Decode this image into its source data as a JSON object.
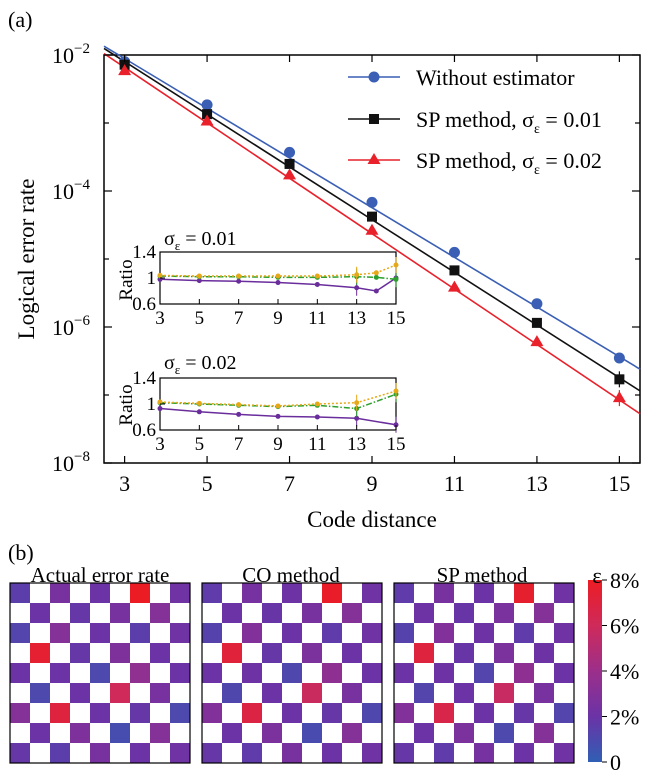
{
  "panel_a_label": "(a)",
  "panel_b_label": "(b)",
  "colors": {
    "without": "#3a5fb4",
    "sp001": "#111111",
    "sp002": "#e8212b",
    "ratio_purple": "#6a2d9c",
    "ratio_green": "#2ca02c",
    "ratio_orange": "#e6a817"
  },
  "chart_data": [
    {
      "type": "line",
      "xlabel": "Code distance",
      "ylabel": "Logical error rate",
      "y_scale": "log",
      "xlim": [
        2.5,
        15.5
      ],
      "ylim": [
        1e-08,
        0.01
      ],
      "x_ticks": [
        "3",
        "5",
        "7",
        "9",
        "11",
        "13",
        "15"
      ],
      "y_tick_bases": [
        "10",
        "10",
        "10",
        "10"
      ],
      "y_tick_exps": [
        "−2",
        "−4",
        "−6",
        "−8"
      ],
      "legend": "top-right",
      "series": [
        {
          "name": "Without estimator",
          "marker": "circle",
          "x": [
            3,
            5,
            7,
            9,
            11,
            13,
            15
          ],
          "y": [
            0.008,
            0.00185,
            0.00037,
            6.8e-05,
            1.25e-05,
            2.2e-06,
            3.5e-07
          ],
          "fit": [
            [
              2.5,
              0.0135
            ],
            [
              15.5,
              2.4e-07
            ]
          ]
        },
        {
          "name": "SP method, σ",
          "name_sub": "ε",
          "name_tail": " = 0.01",
          "marker": "square",
          "x": [
            3,
            5,
            7,
            9,
            11,
            13,
            15
          ],
          "y": [
            0.0072,
            0.00135,
            0.00025,
            4.2e-05,
            6.8e-06,
            1.15e-06,
            1.7e-07
          ],
          "fit": [
            [
              2.5,
              0.0125
            ],
            [
              15.5,
              1.15e-07
            ]
          ]
        },
        {
          "name": "SP method, σ",
          "name_sub": "ε",
          "name_tail": " = 0.02",
          "marker": "triangle",
          "x": [
            3,
            5,
            7,
            9,
            11,
            13,
            15
          ],
          "y": [
            0.0058,
            0.00105,
            0.00017,
            2.6e-05,
            3.8e-06,
            6e-07,
            9e-08
          ],
          "fit": [
            [
              2.5,
              0.0105
            ],
            [
              15.5,
              5.3e-08
            ]
          ]
        }
      ]
    },
    {
      "type": "line",
      "title_prefix": "σ",
      "title_sub": "ε",
      "title_tail": " = 0.01",
      "ylabel": "Ratio",
      "xlim": [
        3,
        15
      ],
      "ylim": [
        0.6,
        1.4
      ],
      "x_ticks": [
        "3",
        "5",
        "7",
        "9",
        "11",
        "13",
        "15"
      ],
      "y_ticks": [
        "1.4",
        "1",
        "0.6"
      ],
      "series": [
        {
          "color": "ratio_purple",
          "dash": "solid",
          "x": [
            3,
            5,
            7,
            9,
            11,
            13,
            14,
            15
          ],
          "y": [
            0.98,
            0.96,
            0.95,
            0.93,
            0.9,
            0.85,
            0.8,
            1.0
          ]
        },
        {
          "color": "ratio_green",
          "dash": "dashdot",
          "x": [
            3,
            5,
            7,
            9,
            11,
            13,
            14,
            15
          ],
          "y": [
            1.03,
            1.02,
            1.02,
            1.01,
            1.01,
            1.02,
            1.01,
            0.98
          ]
        },
        {
          "color": "ratio_orange",
          "dash": "dotted",
          "x": [
            3,
            5,
            7,
            9,
            11,
            13,
            14,
            15
          ],
          "y": [
            1.04,
            1.03,
            1.03,
            1.03,
            1.03,
            1.05,
            1.08,
            1.2
          ]
        }
      ]
    },
    {
      "type": "line",
      "title_prefix": "σ",
      "title_sub": "ε",
      "title_tail": " = 0.02",
      "ylabel": "Ratio",
      "xlim": [
        3,
        15
      ],
      "ylim": [
        0.6,
        1.4
      ],
      "x_ticks": [
        "3",
        "5",
        "7",
        "9",
        "11",
        "13",
        "15"
      ],
      "y_ticks": [
        "1.4",
        "1",
        "0.6"
      ],
      "series": [
        {
          "color": "ratio_purple",
          "dash": "solid",
          "x": [
            3,
            5,
            7,
            9,
            11,
            13,
            15
          ],
          "y": [
            0.93,
            0.88,
            0.84,
            0.81,
            0.8,
            0.78,
            0.68
          ]
        },
        {
          "color": "ratio_green",
          "dash": "dashdot",
          "x": [
            3,
            5,
            7,
            9,
            11,
            13,
            15
          ],
          "y": [
            1.02,
            1.0,
            0.98,
            0.96,
            0.98,
            0.93,
            1.15
          ]
        },
        {
          "color": "ratio_orange",
          "dash": "dotted",
          "x": [
            3,
            5,
            7,
            9,
            11,
            13,
            15
          ],
          "y": [
            1.03,
            1.01,
            0.99,
            0.97,
            1.0,
            1.02,
            1.2
          ]
        }
      ]
    },
    {
      "type": "heatmap",
      "title": "Actual error rate",
      "grid": [
        [
          0.015,
          0,
          0.025,
          0,
          0.02,
          0,
          0.08,
          0,
          0.022
        ],
        [
          0,
          0.02,
          0,
          0.018,
          0,
          0.025,
          0,
          0.03,
          0
        ],
        [
          0.012,
          0,
          0.03,
          0,
          0.02,
          0,
          0.015,
          0,
          0.022
        ],
        [
          0,
          0.075,
          0,
          0.018,
          0,
          0.028,
          0,
          0.02,
          0
        ],
        [
          0.02,
          0,
          0.02,
          0,
          0.01,
          0,
          0.035,
          0,
          0.02
        ],
        [
          0,
          0.01,
          0,
          0.02,
          0,
          0.06,
          0,
          0.025,
          0
        ],
        [
          0.03,
          0,
          0.07,
          0,
          0.02,
          0,
          0.018,
          0,
          0.01
        ],
        [
          0,
          0.02,
          0,
          0.028,
          0,
          0.008,
          0,
          0.03,
          0
        ],
        [
          0.018,
          0,
          0.015,
          0,
          0.025,
          0,
          0.02,
          0,
          0.022
        ]
      ]
    },
    {
      "type": "heatmap",
      "title": "CO method",
      "grid": [
        [
          0.016,
          0,
          0.024,
          0,
          0.021,
          0,
          0.078,
          0,
          0.022
        ],
        [
          0,
          0.02,
          0,
          0.019,
          0,
          0.025,
          0,
          0.03,
          0
        ],
        [
          0.013,
          0,
          0.029,
          0,
          0.02,
          0,
          0.016,
          0,
          0.022
        ],
        [
          0,
          0.072,
          0,
          0.018,
          0,
          0.027,
          0,
          0.02,
          0
        ],
        [
          0.02,
          0,
          0.021,
          0,
          0.011,
          0,
          0.034,
          0,
          0.02
        ],
        [
          0,
          0.011,
          0,
          0.02,
          0,
          0.058,
          0,
          0.025,
          0
        ],
        [
          0.029,
          0,
          0.068,
          0,
          0.02,
          0,
          0.018,
          0,
          0.011
        ],
        [
          0,
          0.02,
          0,
          0.027,
          0,
          0.009,
          0,
          0.03,
          0
        ],
        [
          0.018,
          0,
          0.016,
          0,
          0.025,
          0,
          0.02,
          0,
          0.022
        ]
      ]
    },
    {
      "type": "heatmap",
      "title": "SP method",
      "grid": [
        [
          0.016,
          0,
          0.025,
          0,
          0.02,
          0,
          0.076,
          0,
          0.022
        ],
        [
          0,
          0.021,
          0,
          0.019,
          0,
          0.026,
          0,
          0.03,
          0
        ],
        [
          0.013,
          0,
          0.029,
          0,
          0.021,
          0,
          0.016,
          0,
          0.022
        ],
        [
          0,
          0.07,
          0,
          0.019,
          0,
          0.027,
          0,
          0.021,
          0
        ],
        [
          0.02,
          0,
          0.021,
          0,
          0.012,
          0,
          0.034,
          0,
          0.02
        ],
        [
          0,
          0.012,
          0,
          0.02,
          0,
          0.057,
          0,
          0.025,
          0
        ],
        [
          0.029,
          0,
          0.066,
          0,
          0.02,
          0,
          0.018,
          0,
          0.012
        ],
        [
          0,
          0.02,
          0,
          0.027,
          0,
          0.01,
          0,
          0.03,
          0
        ],
        [
          0.018,
          0,
          0.016,
          0,
          0.024,
          0,
          0.02,
          0,
          0.022
        ]
      ]
    }
  ],
  "colorbar": {
    "label": "ε",
    "ticks": [
      "8%",
      "6%",
      "4%",
      "2%",
      "0"
    ],
    "range": [
      0,
      0.08
    ]
  }
}
